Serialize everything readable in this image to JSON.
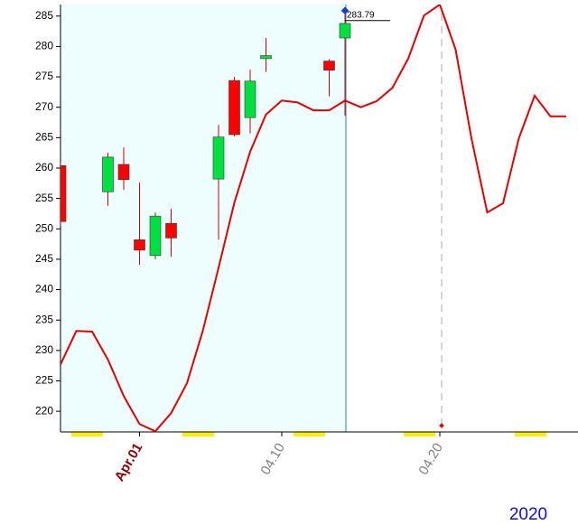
{
  "chart_data": {
    "type": "candlestick",
    "categories": [
      null,
      null,
      null,
      null,
      null,
      "Apr.01",
      null,
      null,
      null,
      null,
      null,
      null,
      null,
      null,
      "04.10",
      null,
      null,
      null,
      null,
      null,
      null,
      null,
      null,
      null,
      "04.20",
      null,
      null,
      null,
      null,
      null,
      null,
      null,
      null
    ],
    "open": [
      260.4,
      null,
      null,
      256.1,
      260.6,
      248.2,
      245.6,
      250.9,
      null,
      null,
      258.2,
      274.4,
      268.3,
      278.0,
      null,
      null,
      null,
      277.6,
      281.4,
      null,
      null,
      null,
      null,
      null,
      null,
      null,
      null,
      null,
      null,
      null,
      null,
      null,
      null
    ],
    "high": [
      261.0,
      null,
      null,
      262.5,
      263.4,
      257.6,
      252.7,
      253.3,
      null,
      null,
      267.1,
      275.0,
      276.2,
      281.4,
      null,
      null,
      null,
      277.9,
      285.9,
      null,
      null,
      null,
      null,
      null,
      null,
      null,
      null,
      null,
      null,
      null,
      null,
      null,
      null
    ],
    "low": [
      250.5,
      null,
      null,
      253.8,
      256.4,
      244.1,
      245.0,
      245.4,
      null,
      null,
      248.2,
      265.2,
      265.7,
      275.8,
      null,
      null,
      null,
      271.8,
      268.6,
      null,
      null,
      null,
      null,
      null,
      null,
      null,
      null,
      null,
      null,
      null,
      null,
      null,
      null
    ],
    "close": [
      251.2,
      null,
      null,
      261.8,
      258.1,
      246.5,
      252.1,
      248.5,
      null,
      null,
      265.1,
      265.5,
      274.3,
      278.5,
      null,
      null,
      null,
      276.1,
      283.79,
      null,
      null,
      null,
      null,
      null,
      null,
      null,
      null,
      null,
      null,
      null,
      null,
      null,
      null
    ],
    "up_color": "#00e040",
    "down_color": "#ff0000",
    "overlay": {
      "color": "#e00000",
      "values": [
        227.7,
        233.2,
        233.1,
        228.5,
        222.5,
        217.9,
        216.7,
        219.7,
        224.6,
        233.2,
        243.6,
        254.3,
        262.7,
        268.8,
        271.1,
        270.8,
        269.5,
        269.5,
        271.1,
        270.0,
        271.0,
        273.2,
        278.0,
        285.1,
        286.9,
        279.5,
        264.9,
        252.7,
        254.2,
        264.9,
        271.9,
        268.5,
        268.5
      ]
    },
    "ylim": [
      216.6,
      286.9
    ],
    "yticks": [
      220,
      225,
      230,
      235,
      240,
      245,
      250,
      255,
      260,
      265,
      270,
      275,
      280,
      285
    ],
    "year_label": "2020"
  }
}
